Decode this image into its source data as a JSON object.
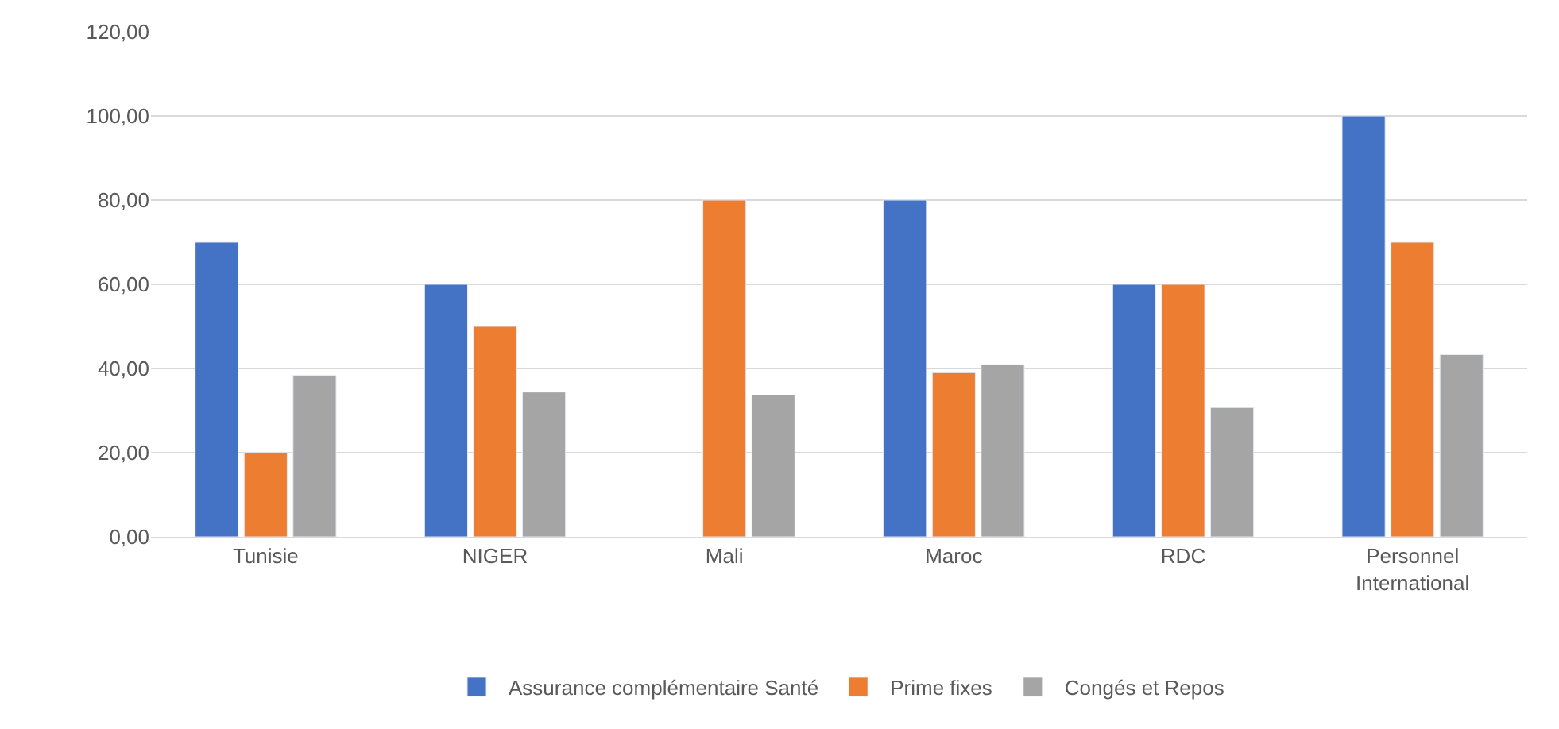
{
  "chart_data": {
    "type": "bar",
    "categories": [
      "Tunisie",
      "NIGER",
      "Mali",
      "Maroc",
      "RDC",
      "Personnel International"
    ],
    "series": [
      {
        "name": "Assurance complémentaire Santé",
        "color": "#4472c4",
        "values": [
          70,
          60,
          null,
          80,
          60,
          100
        ]
      },
      {
        "name": "Prime fixes",
        "color": "#ed7d31",
        "values": [
          20,
          50,
          80,
          39,
          60,
          70
        ]
      },
      {
        "name": "Congés et Repos",
        "color": "#a5a5a5",
        "values": [
          38.4,
          34.4,
          33.7,
          40.9,
          30.7,
          43.3
        ]
      }
    ],
    "ylim": [
      0,
      120
    ],
    "yticks": [
      {
        "value": 0,
        "label": "0,00"
      },
      {
        "value": 20,
        "label": "20,00"
      },
      {
        "value": 40,
        "label": "40,00"
      },
      {
        "value": 60,
        "label": "60,00"
      },
      {
        "value": 80,
        "label": "80,00"
      },
      {
        "value": 100,
        "label": "100,00"
      },
      {
        "value": 120,
        "label": "120,00"
      }
    ],
    "grid": "y",
    "legend": "bottom"
  }
}
